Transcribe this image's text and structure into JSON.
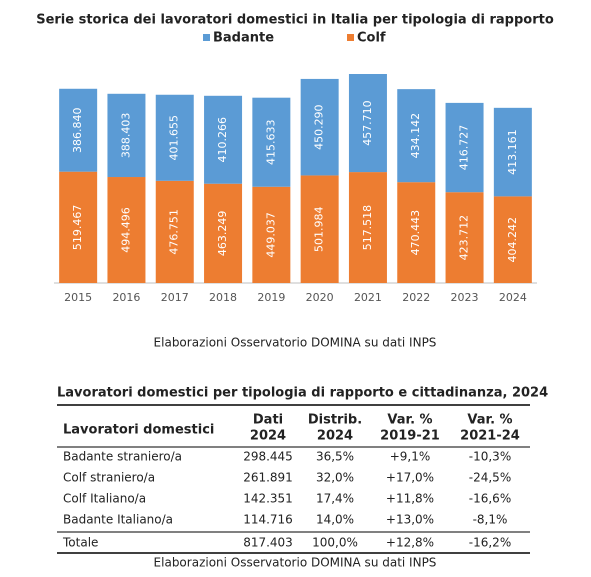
{
  "chart_data": {
    "type": "bar",
    "stacked": true,
    "title": "Serie storica dei lavoratori domestici in Italia per tipologia di rapporto",
    "categories": [
      "2015",
      "2016",
      "2017",
      "2018",
      "2019",
      "2020",
      "2021",
      "2022",
      "2023",
      "2024"
    ],
    "series": [
      {
        "name": "Badante",
        "color": "#5B9BD5",
        "values": [
          386840,
          388403,
          401655,
          410266,
          415633,
          450290,
          457710,
          434142,
          416727,
          413161
        ],
        "value_labels": [
          "386.840",
          "388.403",
          "401.655",
          "410.266",
          "415.633",
          "450.290",
          "457.710",
          "434.142",
          "416.727",
          "413.161"
        ]
      },
      {
        "name": "Colf",
        "color": "#ED7D31",
        "values": [
          519467,
          494496,
          476751,
          463249,
          449037,
          501984,
          517518,
          470443,
          423712,
          404242
        ],
        "value_labels": [
          "519.467",
          "494.496",
          "476.751",
          "463.249",
          "449.037",
          "501.984",
          "517.518",
          "470.443",
          "423.712",
          "404.242"
        ]
      }
    ],
    "legend": "top",
    "source": "Elaborazioni Osservatorio DOMINA su dati INPS"
  },
  "table": {
    "title": "Lavoratori domestici per tipologia di rapporto e cittadinanza, 2024",
    "header": [
      [
        "Lavoratori domestici"
      ],
      [
        "Dati",
        "2024"
      ],
      [
        "Distrib.",
        "2024"
      ],
      [
        "Var. %",
        "2019-21"
      ],
      [
        "Var. %",
        "2021-24"
      ]
    ],
    "rows": [
      [
        "Badante straniero/a",
        "298.445",
        "36,5%",
        "+9,1%",
        "-10,3%"
      ],
      [
        "Colf straniero/a",
        "261.891",
        "32,0%",
        "+17,0%",
        "-24,5%"
      ],
      [
        "Colf Italiano/a",
        "142.351",
        "17,4%",
        "+11,8%",
        "-16,6%"
      ],
      [
        "Badante Italiano/a",
        "114.716",
        "14,0%",
        "+13,0%",
        "-8,1%"
      ],
      [
        "Totale",
        "817.403",
        "100,0%",
        "+12,8%",
        "-16,2%"
      ]
    ],
    "source": "Elaborazioni Osservatorio DOMINA su dati INPS"
  }
}
